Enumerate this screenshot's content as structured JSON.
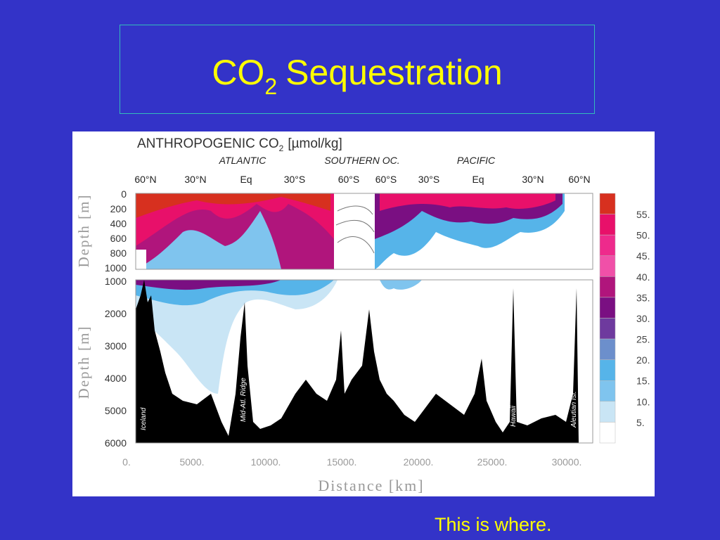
{
  "slide": {
    "title": {
      "main": "CO",
      "subscript": "2",
      "rest": "Sequestration"
    },
    "caption": "This is where."
  },
  "figure": {
    "heading": {
      "main": "ANTHROPOGENIC CO",
      "subscript": "2",
      "rest": "[µmol/kg]"
    },
    "basins": [
      "ATLANTIC",
      "SOUTHERN OC.",
      "PACIFIC"
    ],
    "latitudes": [
      "60°N",
      "30°N",
      "Eq",
      "30°S",
      "60°S",
      "60°S",
      "30°S",
      "Eq",
      "30°N",
      "60°N"
    ],
    "upper_depth_ticks": [
      "0",
      "200",
      "400",
      "600",
      "800",
      "1000"
    ],
    "lower_depth_ticks": [
      "1000",
      "2000",
      "3000",
      "4000",
      "5000",
      "6000"
    ],
    "depth_label": "Depth [m]",
    "distance_ticks": [
      "0.",
      "5000.",
      "10000.",
      "15000.",
      "20000.",
      "25000.",
      "30000."
    ],
    "distance_label": "Distance [km]",
    "colorbar_labels": [
      "55.",
      "50.",
      "45.",
      "40.",
      "35.",
      "30.",
      "25.",
      "20.",
      "15.",
      "10.",
      "5."
    ],
    "features": [
      "Iceland",
      "Mid-Atl. Ridge",
      "Hawaii",
      "Aleutian Isl."
    ]
  }
}
